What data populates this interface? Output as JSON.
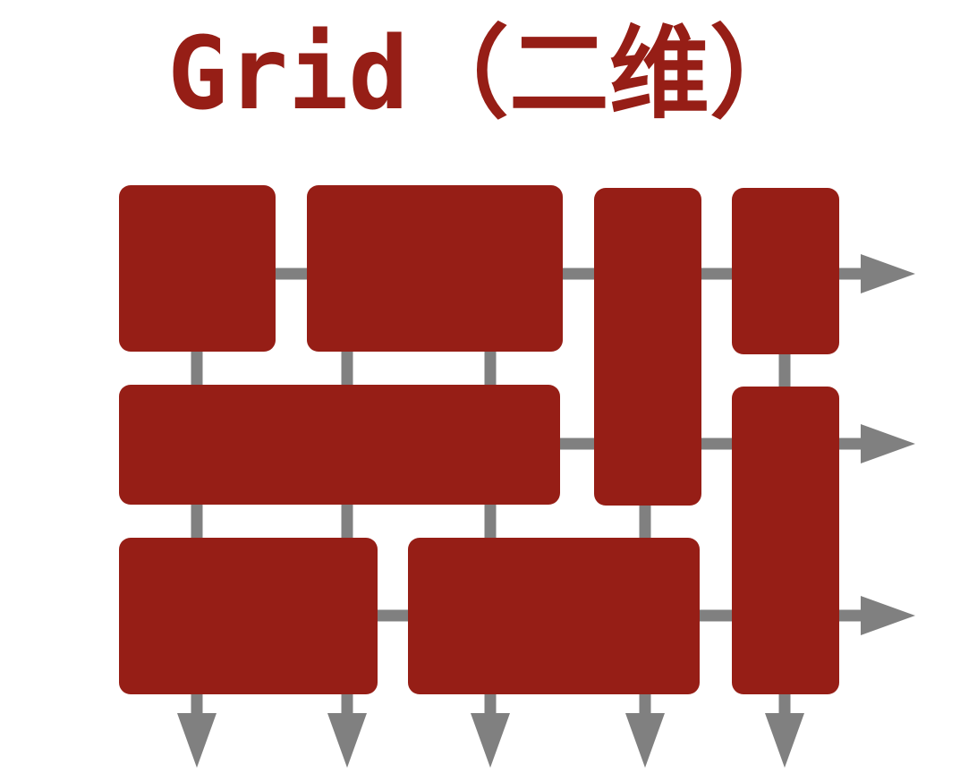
{
  "title": "Grid（二维）",
  "colors": {
    "accent": "#961e16",
    "grid_line": "#808080",
    "background": "#ffffff"
  }
}
